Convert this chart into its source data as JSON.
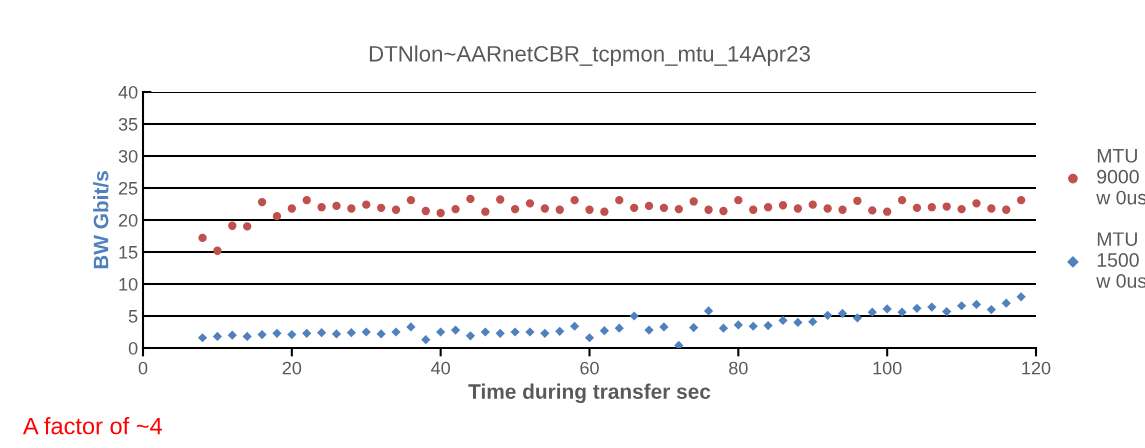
{
  "chart_data": {
    "type": "scatter",
    "title": "DTNlon~AARnetCBR_tcpmon_mtu_14Apr23",
    "xlabel": "Time during transfer sec",
    "ylabel": "BW Gbit/s",
    "x": [
      8,
      10,
      12,
      14,
      16,
      18,
      20,
      22,
      24,
      26,
      28,
      30,
      32,
      34,
      36,
      38,
      40,
      42,
      44,
      46,
      48,
      50,
      52,
      54,
      56,
      58,
      60,
      62,
      64,
      66,
      68,
      70,
      72,
      74,
      76,
      78,
      80,
      82,
      84,
      86,
      88,
      90,
      92,
      94,
      96,
      98,
      100,
      102,
      104,
      106,
      108,
      110,
      112,
      114,
      116,
      118
    ],
    "series": [
      {
        "name": "MTU 9000 w 0us",
        "color": "#c0504d",
        "marker": "circle",
        "values": [
          17.2,
          15.2,
          19.1,
          19.0,
          22.8,
          20.6,
          21.8,
          23.1,
          22.0,
          22.2,
          21.8,
          22.4,
          21.9,
          21.6,
          23.1,
          21.4,
          21.1,
          21.7,
          23.3,
          21.3,
          23.2,
          21.7,
          22.6,
          21.8,
          21.6,
          23.1,
          21.6,
          21.3,
          23.1,
          21.9,
          22.2,
          21.9,
          21.7,
          22.9,
          21.6,
          21.4,
          23.1,
          21.6,
          22.0,
          22.3,
          21.8,
          22.4,
          21.8,
          21.6,
          23.0,
          21.5,
          21.3,
          23.1,
          21.9,
          22.0,
          22.1,
          21.7,
          22.6,
          21.8,
          21.6,
          23.1
        ]
      },
      {
        "name": "MTU 1500 w 0us",
        "color": "#4f81bd",
        "marker": "diamond",
        "values": [
          1.6,
          1.8,
          2.0,
          1.8,
          2.1,
          2.3,
          2.1,
          2.3,
          2.4,
          2.2,
          2.4,
          2.5,
          2.2,
          2.5,
          3.3,
          1.3,
          2.5,
          2.8,
          1.9,
          2.5,
          2.3,
          2.5,
          2.5,
          2.3,
          2.6,
          3.4,
          1.6,
          2.7,
          3.1,
          5.0,
          2.8,
          3.3,
          0.4,
          3.2,
          5.8,
          3.1,
          3.6,
          3.4,
          3.5,
          4.3,
          4.0,
          4.1,
          5.1,
          5.4,
          4.7,
          5.6,
          6.1,
          5.6,
          6.2,
          6.4,
          5.7,
          6.6,
          6.8,
          6.0,
          7.0,
          8.0
        ]
      }
    ],
    "xlim": [
      0,
      120
    ],
    "xticks": [
      0,
      20,
      40,
      60,
      80,
      100,
      120
    ],
    "ylim": [
      0,
      40
    ],
    "yticks": [
      0,
      5,
      10,
      15,
      20,
      25,
      30,
      35,
      40
    ],
    "grid": "y",
    "legend": "right",
    "annotations": [
      "A factor of ~4"
    ]
  }
}
